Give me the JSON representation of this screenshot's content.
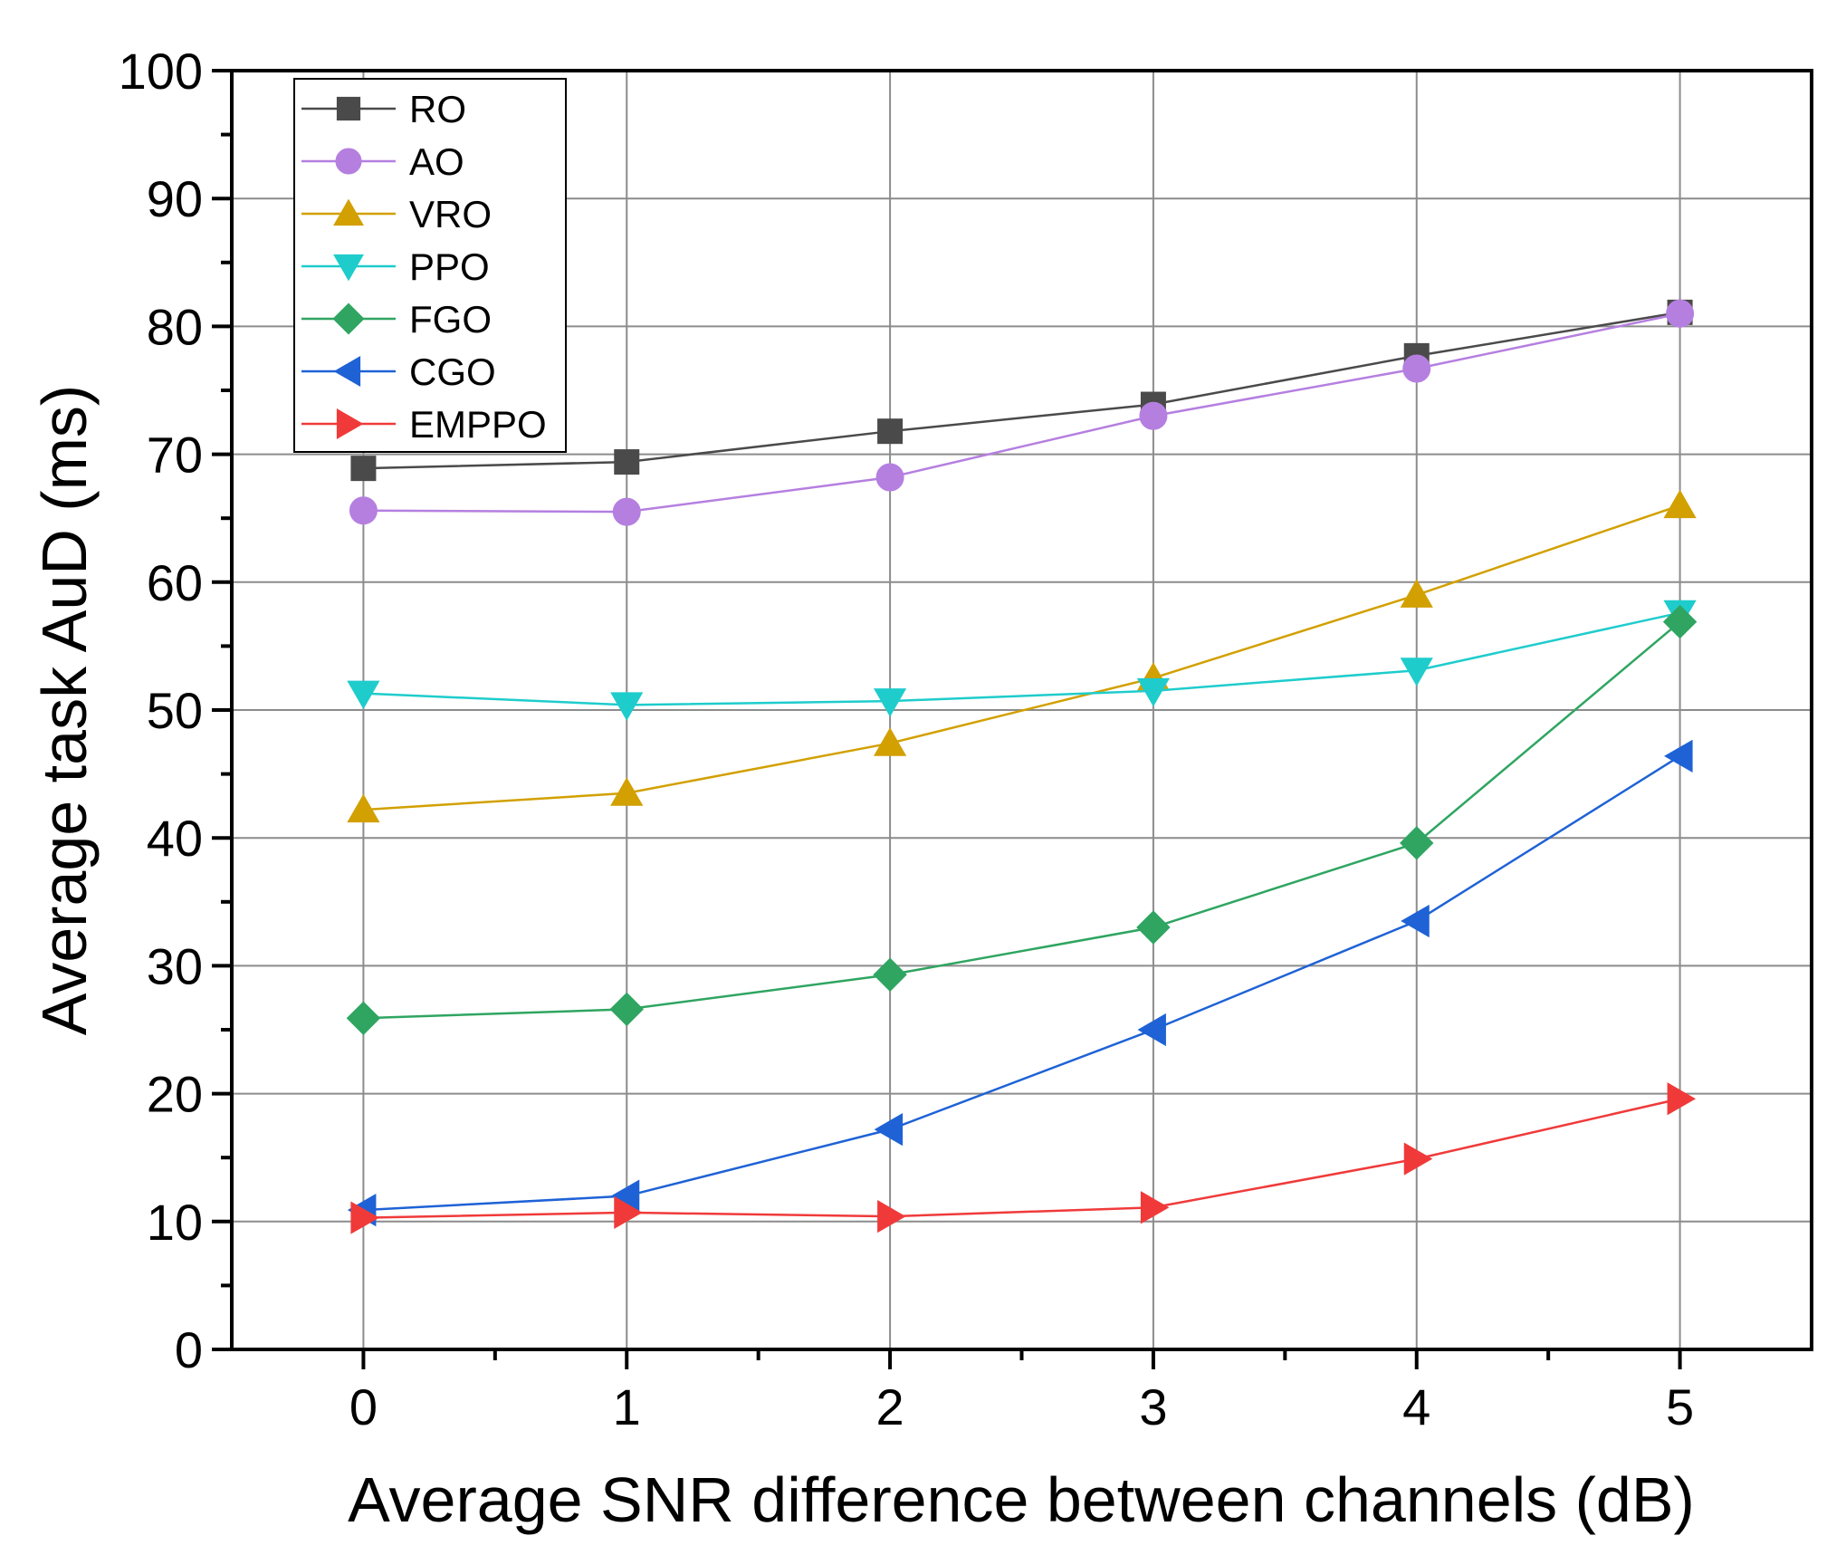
{
  "chart_data": {
    "type": "line",
    "title": "",
    "xlabel": "Average SNR difference between channels (dB)",
    "ylabel": "Average task AuD (ms)",
    "x": [
      0,
      1,
      2,
      3,
      4,
      5
    ],
    "xlim": [
      -0.5,
      5.5
    ],
    "ylim": [
      0,
      100
    ],
    "xticks": [
      0,
      1,
      2,
      3,
      4,
      5
    ],
    "yticks": [
      0,
      10,
      20,
      30,
      40,
      50,
      60,
      70,
      80,
      90,
      100
    ],
    "grid": true,
    "legend_position": "top-left",
    "series": [
      {
        "name": "RO",
        "marker": "square",
        "color": "#4a4a4a",
        "values": [
          68.9,
          69.4,
          71.8,
          73.9,
          77.7,
          81.1
        ]
      },
      {
        "name": "AO",
        "marker": "circle",
        "color": "#b57fe0",
        "values": [
          65.6,
          65.5,
          68.2,
          73.0,
          76.7,
          81.0
        ]
      },
      {
        "name": "VRO",
        "marker": "triangle-up",
        "color": "#d2a000",
        "values": [
          42.2,
          43.5,
          47.4,
          52.5,
          59.0,
          66.0
        ]
      },
      {
        "name": "PPO",
        "marker": "triangle-down",
        "color": "#1fcccc",
        "values": [
          51.3,
          50.4,
          50.7,
          51.5,
          53.1,
          57.6
        ]
      },
      {
        "name": "FGO",
        "marker": "diamond",
        "color": "#2fa561",
        "values": [
          25.9,
          26.6,
          29.3,
          33.0,
          39.6,
          56.9
        ]
      },
      {
        "name": "CGO",
        "marker": "triangle-left",
        "color": "#1e62d6",
        "values": [
          10.9,
          12.0,
          17.2,
          25.0,
          33.5,
          46.4
        ]
      },
      {
        "name": "EMPPO",
        "marker": "triangle-right",
        "color": "#f03a3a",
        "values": [
          10.3,
          10.7,
          10.4,
          11.1,
          14.9,
          19.6
        ]
      }
    ]
  }
}
